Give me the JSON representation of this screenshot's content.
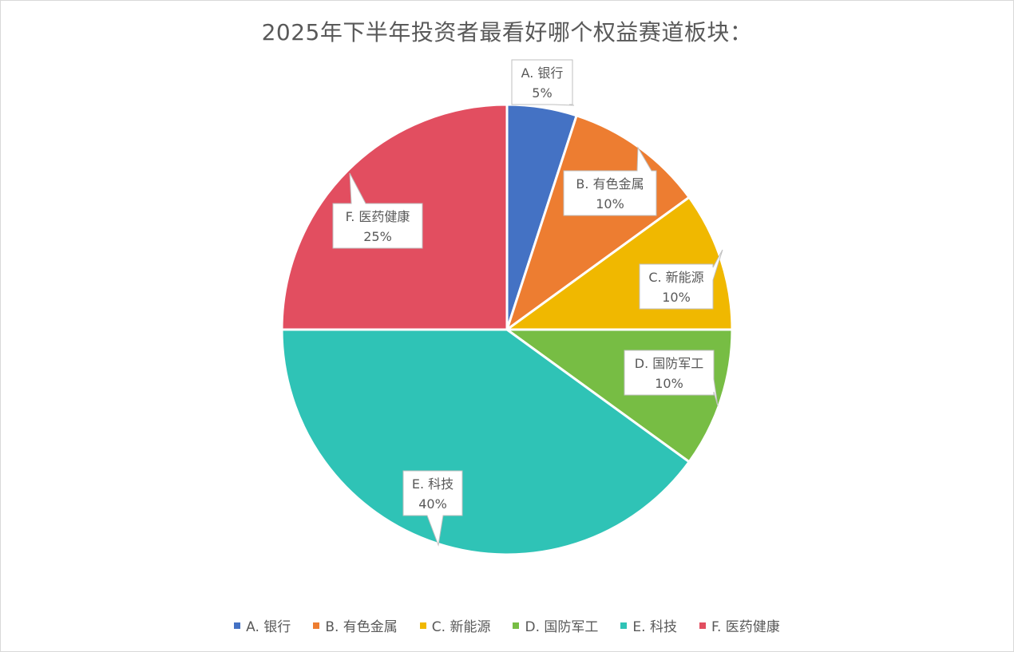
{
  "chart_data": {
    "type": "pie",
    "title": "2025年下半年投资者最看好哪个权益赛道板块：",
    "slices": [
      {
        "label": "A. 银行",
        "value": 5,
        "display": "5%",
        "color": "#4472C4"
      },
      {
        "label": "B. 有色金属",
        "value": 10,
        "display": "10%",
        "color": "#ED7D31"
      },
      {
        "label": "C. 新能源",
        "value": 10,
        "display": "10%",
        "color": "#F0B800"
      },
      {
        "label": "D. 国防军工",
        "value": 10,
        "display": "10%",
        "color": "#77BD44"
      },
      {
        "label": "E. 科技",
        "value": 40,
        "display": "40%",
        "color": "#2FC3B6"
      },
      {
        "label": "F. 医药健康",
        "value": 25,
        "display": "25%",
        "color": "#E24E60"
      }
    ],
    "start_angle_degrees": 0,
    "direction": "clockwise",
    "legend_position": "bottom"
  }
}
